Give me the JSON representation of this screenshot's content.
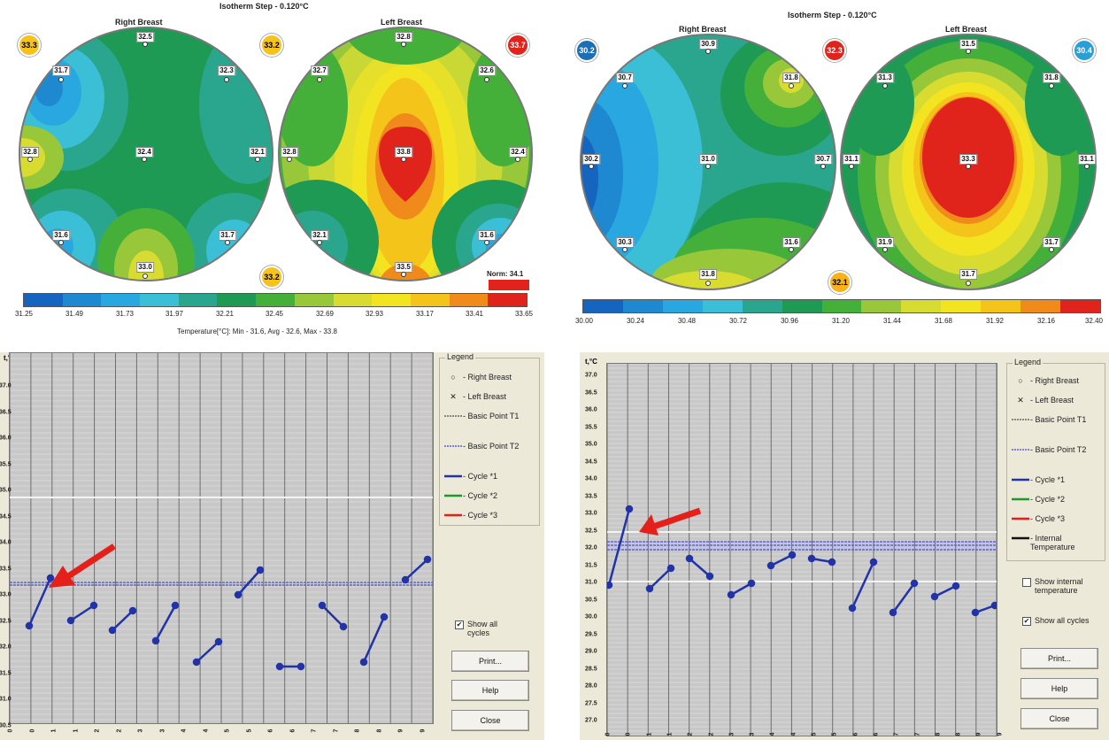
{
  "left_panel": {
    "title": "Isotherm Step - 0.120°C",
    "right_breast_label": "Right Breast",
    "left_breast_label": "Left Breast",
    "badges": [
      {
        "value": "33.3",
        "bg": "#f7c21c",
        "fg": "#000"
      },
      {
        "value": "33.2",
        "bg": "#f7c21c",
        "fg": "#000"
      },
      {
        "value": "33.7",
        "bg": "#e0231b",
        "fg": "#fff"
      },
      {
        "value": "33.2",
        "bg": "#f7c21c",
        "fg": "#000"
      }
    ],
    "right_points": [
      "32.5",
      "31.7",
      "32.3",
      "32.8",
      "32.4",
      "32.1",
      "31.6",
      "31.7",
      "33.0"
    ],
    "left_points": [
      "32.8",
      "32.7",
      "32.6",
      "32.8",
      "33.8",
      "32.4",
      "32.1",
      "31.6",
      "33.5"
    ],
    "norm_label": "Norm: 34.1",
    "scale_ticks": [
      "31.25",
      "31.49",
      "31.73",
      "31.97",
      "32.21",
      "32.45",
      "32.69",
      "32.93",
      "33.17",
      "33.41",
      "33.65"
    ],
    "stats": "Temperature[°C]: Min - 31.6, Avg - 32.6, Max - 33.8"
  },
  "right_panel": {
    "title": "Isotherm Step - 0.120°C",
    "right_breast_label": "Right Breast",
    "left_breast_label": "Left Breast",
    "badges": [
      {
        "value": "30.2",
        "bg": "#1b6fb5",
        "fg": "#fff"
      },
      {
        "value": "32.3",
        "bg": "#e0231b",
        "fg": "#fff"
      },
      {
        "value": "30.4",
        "bg": "#2a9fd6",
        "fg": "#fff"
      },
      {
        "value": "32.1",
        "bg": "#f7b21c",
        "fg": "#000"
      }
    ],
    "right_points": [
      "30.9",
      "30.7",
      "31.8",
      "30.2",
      "31.0",
      "30.7",
      "30.3",
      "31.6",
      "31.8"
    ],
    "left_points": [
      "31.5",
      "31.3",
      "31.8",
      "31.1",
      "33.3",
      "31.1",
      "31.9",
      "31.7",
      "31.7"
    ],
    "scale_ticks": [
      "30.00",
      "30.24",
      "30.48",
      "30.72",
      "30.96",
      "31.20",
      "31.44",
      "31.68",
      "31.92",
      "32.16",
      "32.40"
    ]
  },
  "graph_left": {
    "unit": "t,°C",
    "y_labels": [
      "37.0",
      "36.5",
      "36.0",
      "35.5",
      "35.0",
      "34.5",
      "34.0",
      "33.5",
      "33.0",
      "32.5",
      "32.0",
      "31.5",
      "31.0",
      "30.5"
    ],
    "x_labels": [
      "0",
      "0",
      "1",
      "1",
      "2",
      "2",
      "3",
      "3",
      "4",
      "4",
      "5",
      "5",
      "6",
      "6",
      "7",
      "7",
      "8",
      "8",
      "9",
      "9"
    ],
    "legend_title": "Legend",
    "legend": [
      "- Right Breast",
      "- Left Breast",
      "- Basic Point T1",
      "- Basic Point T2",
      "- Cycle *1",
      "- Cycle *2",
      "- Cycle *3"
    ],
    "show_all_cycles": "Show all cycles",
    "buttons": [
      "Print...",
      "Help",
      "Close"
    ]
  },
  "graph_right": {
    "unit": "t,°C",
    "y_labels": [
      "37.0",
      "36.5",
      "36.0",
      "35.5",
      "35.0",
      "34.5",
      "34.0",
      "33.5",
      "33.0",
      "32.5",
      "32.0",
      "31.5",
      "31.0",
      "30.5",
      "30.0",
      "29.5",
      "29.0",
      "28.5",
      "28.0",
      "27.5",
      "27.0"
    ],
    "x_labels": [
      "0",
      "0",
      "1",
      "1",
      "2",
      "2",
      "3",
      "3",
      "4",
      "4",
      "5",
      "5",
      "6",
      "6",
      "7",
      "7",
      "8",
      "8",
      "9",
      "9"
    ],
    "legend_title": "Legend",
    "legend": [
      "- Right Breast",
      "- Left Breast",
      "- Basic Point T1",
      "- Basic Point T2",
      "- Cycle *1",
      "- Cycle *2",
      "- Cycle *3",
      "- Internal Temperature"
    ],
    "show_internal": "Show internal temperature",
    "show_all_cycles": "Show all cycles",
    "buttons": [
      "Print...",
      "Help",
      "Close"
    ]
  },
  "colors": {
    "scale": [
      "#1565c0",
      "#1e88d0",
      "#29a7e0",
      "#3bbfd6",
      "#2ba68e",
      "#1f9a55",
      "#45b039",
      "#98c83a",
      "#d8dc30",
      "#f2e420",
      "#f5c41a",
      "#f08a1a",
      "#e0231b"
    ]
  }
}
